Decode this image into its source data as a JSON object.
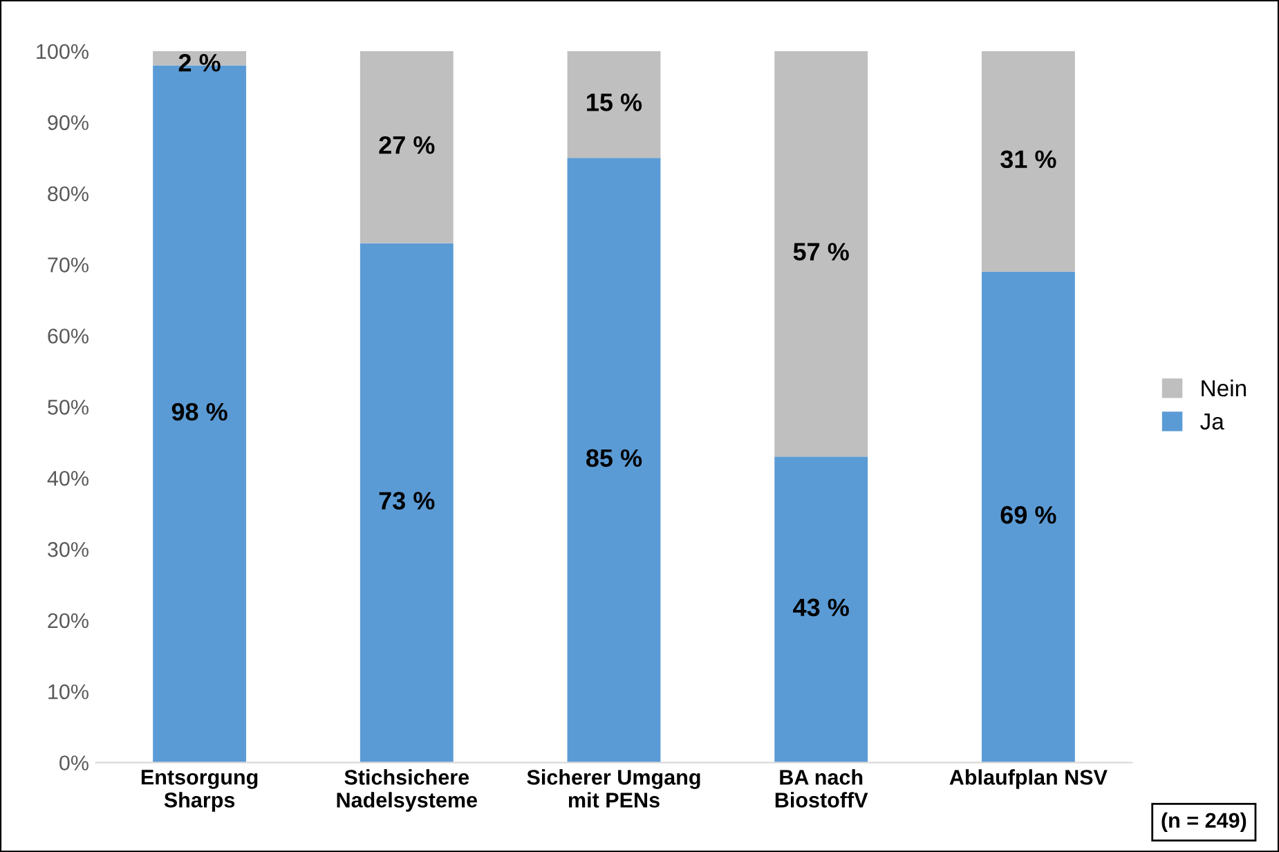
{
  "chart_data": {
    "type": "bar",
    "stacked": true,
    "categories": [
      "Entsorgung\nSharps",
      "Stichsichere\nNadelsysteme",
      "Sicherer Umgang\nmit PENs",
      "BA nach\nBiostoffV",
      "Ablaufplan NSV"
    ],
    "series": [
      {
        "name": "Ja",
        "color": "#5b9bd5",
        "values": [
          98,
          73,
          85,
          43,
          69
        ],
        "value_labels": [
          "98 %",
          "73 %",
          "85 %",
          "43 %",
          "69 %"
        ]
      },
      {
        "name": "Nein",
        "color": "#bfbfbf",
        "values": [
          2,
          27,
          15,
          57,
          31
        ],
        "value_labels": [
          "2 %",
          "27 %",
          "15 %",
          "57 %",
          "31 %"
        ]
      }
    ],
    "ylim": [
      0,
      100
    ],
    "yticks": [
      {
        "value": 0,
        "label": "0%"
      },
      {
        "value": 10,
        "label": "10%"
      },
      {
        "value": 20,
        "label": "20%"
      },
      {
        "value": 30,
        "label": "30%"
      },
      {
        "value": 40,
        "label": "40%"
      },
      {
        "value": 50,
        "label": "50%"
      },
      {
        "value": 60,
        "label": "60%"
      },
      {
        "value": 70,
        "label": "70%"
      },
      {
        "value": 80,
        "label": "80%"
      },
      {
        "value": 90,
        "label": "90%"
      },
      {
        "value": 100,
        "label": "100%"
      }
    ],
    "grid": false,
    "legend": "right",
    "annotations": [
      "(n = 249)"
    ]
  }
}
